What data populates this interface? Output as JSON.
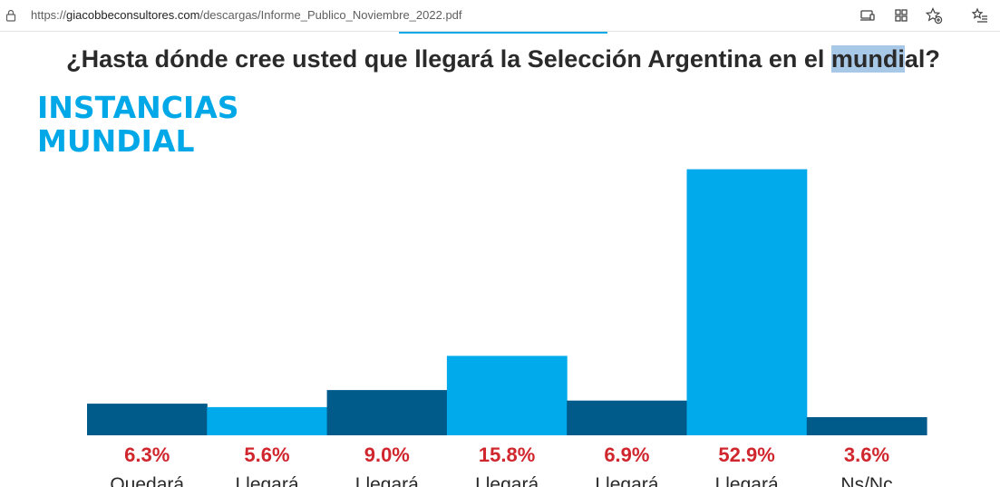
{
  "browser": {
    "url_prefix": "https://",
    "url_host": "giacobbeconsultores.com",
    "url_path": "/descargas/Informe_Publico_Noviembre_2022.pdf"
  },
  "page": {
    "question_before": "¿Hasta dónde cree usted que llegará la Selección Argentina en el ",
    "question_highlight": "mundi",
    "question_after": "al?",
    "heading_line1": "INSTANCIAS",
    "heading_line2": "MUNDIAL"
  },
  "chart_data": {
    "type": "bar",
    "categories": [
      "Quedará",
      "Llegará",
      "Llegará",
      "Llegará",
      "Llegará",
      "Llegará",
      "Ns/Nc"
    ],
    "values": [
      6.3,
      5.6,
      9.0,
      15.8,
      6.9,
      52.9,
      3.6
    ],
    "value_labels": [
      "6.3%",
      "5.6%",
      "9.0%",
      "15.8%",
      "6.9%",
      "52.9%",
      "3.6%"
    ],
    "ylim": [
      0,
      53
    ],
    "grid": false,
    "colors": [
      "#005b8a",
      "#00aaeb",
      "#005b8a",
      "#00aaeb",
      "#005b8a",
      "#00aaeb",
      "#005b8a"
    ],
    "label_color": "#d0262d"
  }
}
